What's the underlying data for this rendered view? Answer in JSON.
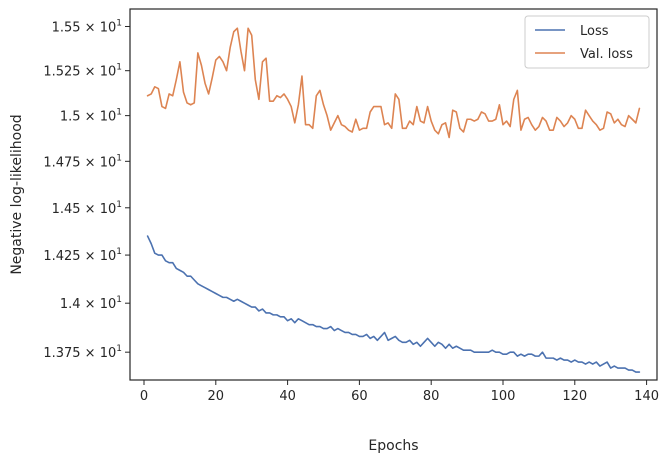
{
  "chart_data": {
    "type": "line",
    "title": "",
    "xlabel": "Epochs",
    "ylabel": "Negative log-likelihood",
    "xlim": [
      -3.9,
      142.9
    ],
    "ylim": [
      13.61,
      15.6
    ],
    "yscale": "log",
    "grid": false,
    "legend_position": "top-right",
    "x_ticks": [
      0,
      20,
      40,
      60,
      80,
      100,
      120,
      140
    ],
    "y_ticks": [
      {
        "value": 13.75,
        "mantissa": "1.375"
      },
      {
        "value": 14.0,
        "mantissa": "1.4"
      },
      {
        "value": 14.25,
        "mantissa": "1.425"
      },
      {
        "value": 14.5,
        "mantissa": "1.45"
      },
      {
        "value": 14.75,
        "mantissa": "1.475"
      },
      {
        "value": 15.0,
        "mantissa": "1.5"
      },
      {
        "value": 15.25,
        "mantissa": "1.525"
      },
      {
        "value": 15.5,
        "mantissa": "1.55"
      }
    ],
    "y_tick_base": "10",
    "y_tick_exponent": "1",
    "y_tick_times": "×",
    "series": [
      {
        "name": "Loss",
        "color": "#4c72b0",
        "x": [
          1,
          2,
          3,
          4,
          5,
          6,
          7,
          8,
          9,
          10,
          11,
          12,
          13,
          14,
          15,
          16,
          17,
          18,
          19,
          20,
          21,
          22,
          23,
          24,
          25,
          26,
          27,
          28,
          29,
          30,
          31,
          32,
          33,
          34,
          35,
          36,
          37,
          38,
          39,
          40,
          41,
          42,
          43,
          44,
          45,
          46,
          47,
          48,
          49,
          50,
          51,
          52,
          53,
          54,
          55,
          56,
          57,
          58,
          59,
          60,
          61,
          62,
          63,
          64,
          65,
          66,
          67,
          68,
          69,
          70,
          71,
          72,
          73,
          74,
          75,
          76,
          77,
          78,
          79,
          80,
          81,
          82,
          83,
          84,
          85,
          86,
          87,
          88,
          89,
          90,
          91,
          92,
          93,
          94,
          95,
          96,
          97,
          98,
          99,
          100,
          101,
          102,
          103,
          104,
          105,
          106,
          107,
          108,
          109,
          110,
          111,
          112,
          113,
          114,
          115,
          116,
          117,
          118,
          119,
          120,
          121,
          122,
          123,
          124,
          125,
          126,
          127,
          128,
          129,
          130,
          131,
          132,
          133,
          134,
          135,
          136,
          137,
          138
        ],
        "values": [
          14.35,
          14.31,
          14.26,
          14.25,
          14.25,
          14.22,
          14.21,
          14.21,
          14.18,
          14.17,
          14.16,
          14.14,
          14.14,
          14.12,
          14.1,
          14.09,
          14.08,
          14.07,
          14.06,
          14.05,
          14.04,
          14.03,
          14.03,
          14.02,
          14.01,
          14.02,
          14.01,
          14.0,
          13.99,
          13.98,
          13.98,
          13.96,
          13.97,
          13.95,
          13.95,
          13.94,
          13.94,
          13.93,
          13.93,
          13.91,
          13.92,
          13.9,
          13.92,
          13.91,
          13.9,
          13.89,
          13.89,
          13.88,
          13.88,
          13.87,
          13.87,
          13.88,
          13.86,
          13.87,
          13.86,
          13.85,
          13.85,
          13.84,
          13.84,
          13.83,
          13.83,
          13.84,
          13.82,
          13.83,
          13.81,
          13.83,
          13.85,
          13.81,
          13.82,
          13.83,
          13.81,
          13.8,
          13.8,
          13.81,
          13.79,
          13.8,
          13.78,
          13.8,
          13.82,
          13.8,
          13.78,
          13.8,
          13.79,
          13.77,
          13.79,
          13.77,
          13.78,
          13.77,
          13.76,
          13.76,
          13.76,
          13.75,
          13.75,
          13.75,
          13.75,
          13.75,
          13.76,
          13.75,
          13.75,
          13.74,
          13.74,
          13.75,
          13.75,
          13.73,
          13.74,
          13.73,
          13.74,
          13.74,
          13.73,
          13.73,
          13.75,
          13.72,
          13.72,
          13.72,
          13.71,
          13.72,
          13.71,
          13.71,
          13.7,
          13.71,
          13.7,
          13.7,
          13.69,
          13.7,
          13.69,
          13.7,
          13.68,
          13.69,
          13.7,
          13.67,
          13.68,
          13.67,
          13.67,
          13.67,
          13.66,
          13.66,
          13.65,
          13.65
        ]
      },
      {
        "name": "Val. loss",
        "color": "#dd8452",
        "x": [
          1,
          2,
          3,
          4,
          5,
          6,
          7,
          8,
          9,
          10,
          11,
          12,
          13,
          14,
          15,
          16,
          17,
          18,
          19,
          20,
          21,
          22,
          23,
          24,
          25,
          26,
          27,
          28,
          29,
          30,
          31,
          32,
          33,
          34,
          35,
          36,
          37,
          38,
          39,
          40,
          41,
          42,
          43,
          44,
          45,
          46,
          47,
          48,
          49,
          50,
          51,
          52,
          53,
          54,
          55,
          56,
          57,
          58,
          59,
          60,
          61,
          62,
          63,
          64,
          65,
          66,
          67,
          68,
          69,
          70,
          71,
          72,
          73,
          74,
          75,
          76,
          77,
          78,
          79,
          80,
          81,
          82,
          83,
          84,
          85,
          86,
          87,
          88,
          89,
          90,
          91,
          92,
          93,
          94,
          95,
          96,
          97,
          98,
          99,
          100,
          101,
          102,
          103,
          104,
          105,
          106,
          107,
          108,
          109,
          110,
          111,
          112,
          113,
          114,
          115,
          116,
          117,
          118,
          119,
          120,
          121,
          122,
          123,
          124,
          125,
          126,
          127,
          128,
          129,
          130,
          131,
          132,
          133,
          134,
          135,
          136,
          137,
          138
        ],
        "values": [
          15.11,
          15.12,
          15.16,
          15.15,
          15.05,
          15.04,
          15.12,
          15.11,
          15.2,
          15.3,
          15.13,
          15.07,
          15.06,
          15.07,
          15.35,
          15.28,
          15.18,
          15.12,
          15.21,
          15.31,
          15.33,
          15.3,
          15.25,
          15.38,
          15.47,
          15.49,
          15.36,
          15.25,
          15.49,
          15.45,
          15.2,
          15.09,
          15.3,
          15.32,
          15.08,
          15.08,
          15.11,
          15.1,
          15.12,
          15.09,
          15.05,
          14.96,
          15.06,
          15.22,
          14.95,
          14.95,
          14.93,
          15.11,
          15.14,
          15.06,
          15.0,
          14.92,
          14.96,
          15.0,
          14.95,
          14.94,
          14.92,
          14.91,
          14.98,
          14.92,
          14.93,
          14.93,
          15.02,
          15.05,
          15.05,
          15.05,
          14.95,
          14.96,
          14.93,
          15.12,
          15.09,
          14.93,
          14.93,
          14.97,
          14.95,
          15.05,
          14.97,
          14.96,
          15.05,
          14.97,
          14.92,
          14.9,
          14.95,
          14.96,
          14.88,
          15.03,
          15.02,
          14.93,
          14.91,
          14.98,
          14.98,
          14.97,
          14.98,
          15.02,
          15.01,
          14.97,
          14.97,
          14.98,
          15.06,
          14.95,
          14.97,
          14.94,
          15.09,
          15.14,
          14.92,
          14.98,
          14.99,
          14.95,
          14.92,
          14.94,
          14.99,
          14.97,
          14.92,
          14.92,
          14.99,
          14.97,
          14.94,
          14.96,
          15.0,
          14.98,
          14.93,
          14.93,
          15.03,
          15.0,
          14.97,
          14.95,
          14.92,
          14.93,
          15.02,
          15.01,
          14.96,
          14.98,
          14.95,
          14.94,
          15.0,
          14.98,
          14.96,
          15.04
        ]
      }
    ]
  }
}
